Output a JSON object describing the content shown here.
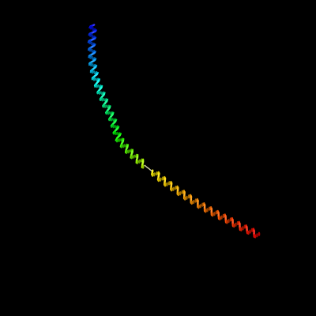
{
  "scene": {
    "background_color": "#000000",
    "subject": "protein-helix-ribbon",
    "coloring": "rainbow-n-to-c",
    "palette": {
      "n_terminus": "#0000ff",
      "c_terminus": "#ff0000"
    },
    "segments": [
      {
        "name": "upper-helix",
        "color_start": "#0000ff",
        "color_end": "#ccff00"
      },
      {
        "name": "loop",
        "color": "#d4d4aa"
      },
      {
        "name": "lower-helix",
        "color_start": "#ffff00",
        "color_end": "#ff0000"
      }
    ]
  }
}
